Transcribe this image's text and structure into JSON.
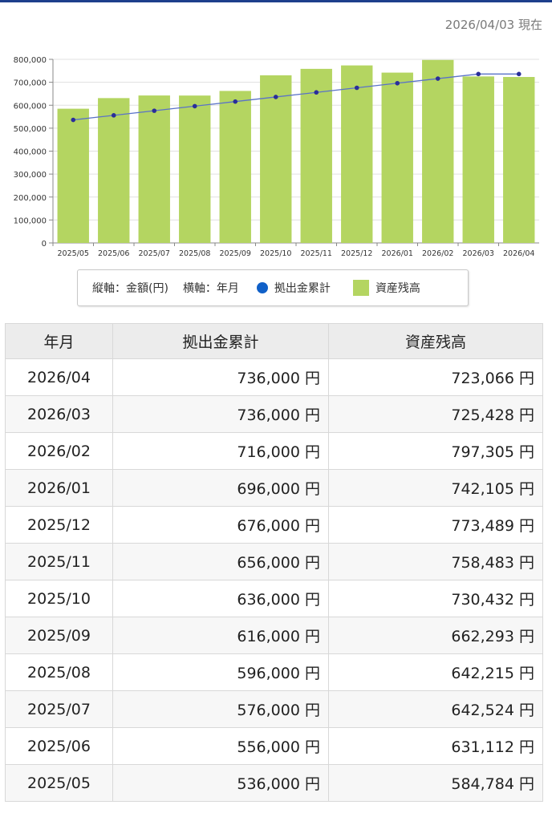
{
  "as_of": "2026/04/03 現在",
  "legend": {
    "axes_note": "縦軸：金額(円)",
    "x_note": "横軸：年月",
    "series_line": "拠出金累計",
    "series_bar": "資産残高"
  },
  "colors": {
    "bar": "#b4d561",
    "line": "#1060c8",
    "accent": "#1d3f8c"
  },
  "chart_data": {
    "type": "bar",
    "categories": [
      "2025/05",
      "2025/06",
      "2025/07",
      "2025/08",
      "2025/09",
      "2025/10",
      "2025/11",
      "2025/12",
      "2026/01",
      "2026/02",
      "2026/03",
      "2026/04"
    ],
    "ylim": [
      0,
      800000
    ],
    "yticks": [
      "0",
      "100,000",
      "200,000",
      "300,000",
      "400,000",
      "500,000",
      "600,000",
      "700,000",
      "800,000"
    ],
    "series": [
      {
        "name": "資産残高",
        "kind": "bar",
        "values": [
          584784,
          631112,
          642524,
          642215,
          662293,
          730432,
          758483,
          773489,
          742105,
          797305,
          725428,
          723066
        ]
      },
      {
        "name": "拠出金累計",
        "kind": "line",
        "values": [
          536000,
          556000,
          576000,
          596000,
          616000,
          636000,
          656000,
          676000,
          696000,
          716000,
          736000,
          736000
        ]
      }
    ]
  },
  "table": {
    "headers": [
      "年月",
      "拠出金累計",
      "資産残高"
    ],
    "rows": [
      [
        "2026/04",
        "736,000 円",
        "723,066 円"
      ],
      [
        "2026/03",
        "736,000 円",
        "725,428 円"
      ],
      [
        "2026/02",
        "716,000 円",
        "797,305 円"
      ],
      [
        "2026/01",
        "696,000 円",
        "742,105 円"
      ],
      [
        "2025/12",
        "676,000 円",
        "773,489 円"
      ],
      [
        "2025/11",
        "656,000 円",
        "758,483 円"
      ],
      [
        "2025/10",
        "636,000 円",
        "730,432 円"
      ],
      [
        "2025/09",
        "616,000 円",
        "662,293 円"
      ],
      [
        "2025/08",
        "596,000 円",
        "642,215 円"
      ],
      [
        "2025/07",
        "576,000 円",
        "642,524 円"
      ],
      [
        "2025/06",
        "556,000 円",
        "631,112 円"
      ],
      [
        "2025/05",
        "536,000 円",
        "584,784 円"
      ]
    ]
  }
}
